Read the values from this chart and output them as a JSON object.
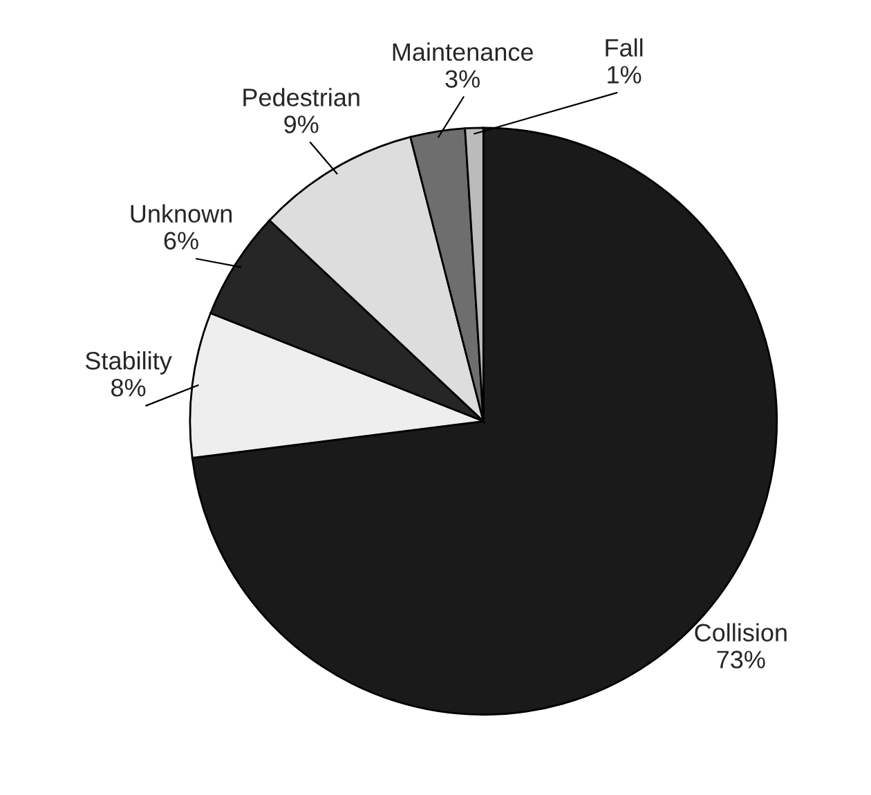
{
  "chart_data": {
    "type": "pie",
    "categories": [
      "Collision",
      "Stability",
      "Unknown",
      "Pedestrian",
      "Maintenance",
      "Fall"
    ],
    "values": [
      73,
      8,
      6,
      9,
      3,
      1
    ],
    "value_labels": [
      "73%",
      "8%",
      "6%",
      "9%",
      "3%",
      "1%"
    ],
    "colors": [
      "#1a1a1a",
      "#eeeeee",
      "#262626",
      "#dddddd",
      "#6e6e6e",
      "#bbbbbb"
    ]
  }
}
